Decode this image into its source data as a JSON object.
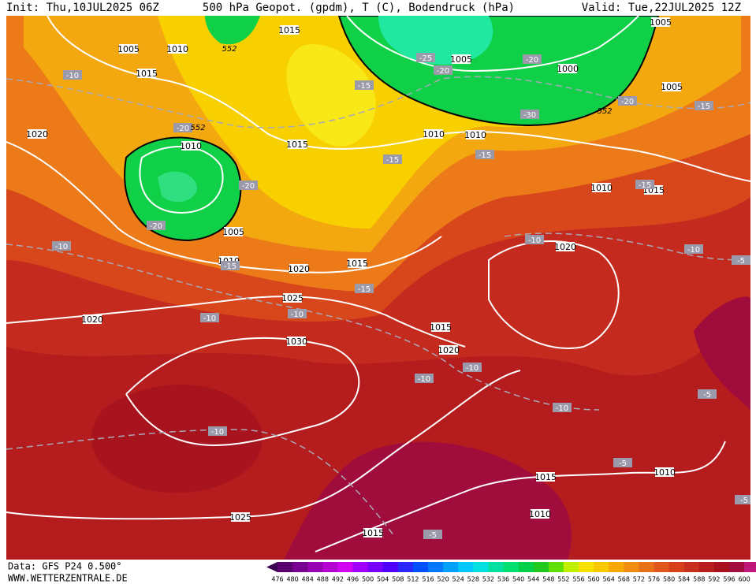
{
  "header": {
    "init": "Init: Thu,10JUL2025 06Z",
    "title": "500 hPa Geopot. (gpdm), T (C), Bodendruck (hPa)",
    "valid": "Valid: Tue,22JUL2025 12Z"
  },
  "footer": {
    "data": "Data: GFS P24 0.500°",
    "site": "WWW.WETTERZENTRALE.DE"
  },
  "colorbar": {
    "ticks": [
      476,
      480,
      484,
      488,
      492,
      496,
      500,
      504,
      508,
      512,
      516,
      520,
      524,
      528,
      532,
      536,
      540,
      544,
      548,
      552,
      556,
      560,
      564,
      568,
      572,
      576,
      580,
      584,
      588,
      592,
      596,
      600
    ]
  },
  "isobar_labels": [
    1005,
    1010,
    1015,
    1005,
    1000,
    1005,
    1005,
    1015,
    1020,
    1010,
    1015,
    1010,
    1010,
    1010,
    1015,
    1005,
    1010,
    1015,
    1020,
    1020,
    1025,
    1020,
    1030,
    1015,
    1020,
    1015,
    1010,
    1010,
    1015,
    1025
  ],
  "temperature_labels": [
    -10,
    -20,
    -15,
    -20,
    -20,
    -25,
    -20,
    -20,
    -30,
    -20,
    -15,
    -15,
    -15,
    -10,
    -15,
    -15,
    -10,
    -10,
    -10,
    -10,
    -5,
    -10,
    -10,
    -10,
    -10,
    -5,
    -5,
    -5,
    -5,
    -15
  ],
  "geopotential_labels": [
    552,
    552,
    552
  ]
}
